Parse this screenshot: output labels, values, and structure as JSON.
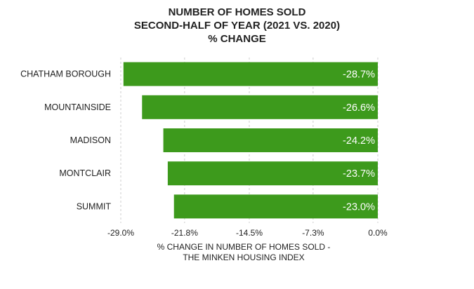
{
  "chart_data": {
    "type": "bar",
    "orientation": "horizontal",
    "title": [
      "NUMBER OF HOMES SOLD",
      "SECOND-HALF OF YEAR (2021 VS. 2020)",
      "% CHANGE"
    ],
    "categories": [
      "CHATHAM BOROUGH",
      "MOUNTAINSIDE",
      "MADISON",
      "MONTCLAIR",
      "SUMMIT"
    ],
    "values": [
      -28.7,
      -26.6,
      -24.2,
      -23.7,
      -23.0
    ],
    "data_labels": [
      "-28.7%",
      "-26.6%",
      "-24.2%",
      "-23.7%",
      "-23.0%"
    ],
    "xlim": [
      -29.0,
      0.0
    ],
    "xticks": [
      -29.0,
      -21.8,
      -14.5,
      -7.3,
      0.0
    ],
    "xtick_labels": [
      "-29.0%",
      "-21.8%",
      "-14.5%",
      "-7.3%",
      "0.0%"
    ],
    "xlabel": [
      "% CHANGE IN NUMBER OF HOMES SOLD -",
      "THE MINKEN HOUSING INDEX"
    ],
    "ylabel": "",
    "grid": "vertical dashed",
    "legend": "none",
    "bar_color": "#3d9a1c",
    "grid_color": "#cccccc"
  }
}
